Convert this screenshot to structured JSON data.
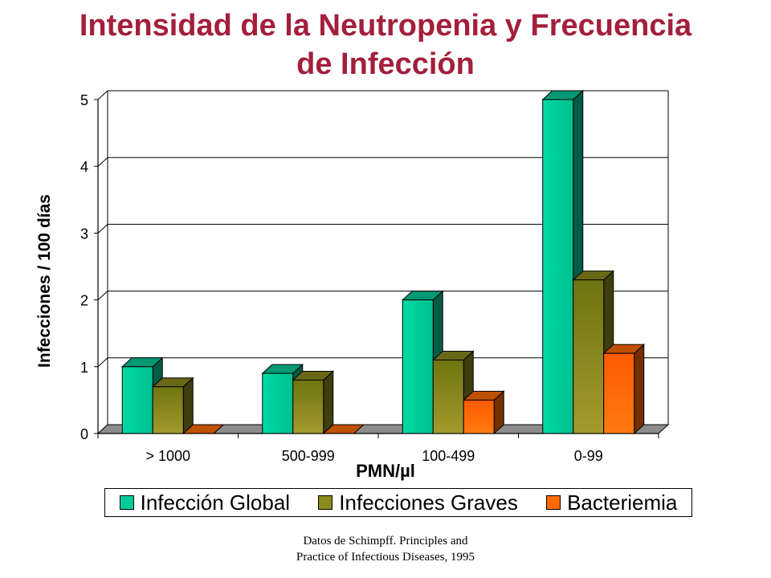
{
  "title_line1": "Intensidad de la Neutropenia y Frecuencia",
  "title_line2": "de Infección",
  "source_line1": "Datos de Schimpff. Principles and",
  "source_line2": "Practice of Infectious Diseases, 1995",
  "chart_data": {
    "type": "bar",
    "title": "Intensidad de la Neutropenia y Frecuencia de Infección",
    "xlabel": "PMN/µl",
    "ylabel": "Infecciones / 100 días",
    "categories": [
      "> 1000",
      "500-999",
      "100-499",
      "0-99"
    ],
    "ylim": [
      0,
      5
    ],
    "yticks": [
      "0",
      "1",
      "2",
      "3",
      "4",
      "5"
    ],
    "grid": true,
    "legend_position": "bottom",
    "series": [
      {
        "name": "Infección Global",
        "values": [
          1.0,
          0.9,
          2.0,
          5.0
        ],
        "color": "#00cc99"
      },
      {
        "name": "Infecciones Graves",
        "values": [
          0.7,
          0.8,
          1.1,
          2.3
        ],
        "color": "#8a8a1e"
      },
      {
        "name": "Bacteriemia",
        "values": [
          0.0,
          0.0,
          0.5,
          1.2
        ],
        "color": "#ff6a00"
      }
    ]
  }
}
